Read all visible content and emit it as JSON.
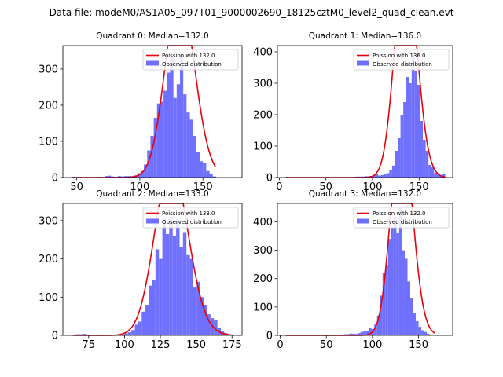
{
  "figure": {
    "suptitle": "Data file: modeM0/AS1A05_097T01_9000002690_18125cztM0_level2_quad_clean.evt",
    "colors": {
      "hist": "#7070ff",
      "line": "#e8000b",
      "axis": "#000000"
    }
  },
  "chart_data": [
    {
      "type": "bar",
      "title": "Quadrant 0: Median=132.0",
      "xlim": [
        39,
        181
      ],
      "ylim": [
        0,
        365
      ],
      "xticks": [
        50,
        100,
        150
      ],
      "yticks": [
        0,
        100,
        200,
        300
      ],
      "legend": {
        "placement": "top-right",
        "line_label": "Poission with 132.0",
        "hist_label": "Observed distribution"
      },
      "bins": {
        "x0": 46,
        "width": 2.6
      },
      "hist_values": [
        2,
        1,
        0,
        0,
        1,
        0,
        0,
        1,
        2,
        0,
        4,
        5,
        3,
        2,
        4,
        3,
        4,
        4,
        4,
        6,
        12,
        18,
        36,
        75,
        115,
        165,
        205,
        210,
        240,
        290,
        335,
        220,
        258,
        340,
        230,
        180,
        160,
        115,
        70,
        45,
        40,
        18,
        10,
        3
      ],
      "poisson": {
        "mu": 132.0,
        "total": 5700
      }
    },
    {
      "type": "bar",
      "title": "Quadrant 1: Median=136.0",
      "xlim": [
        -2,
        186
      ],
      "ylim": [
        0,
        420
      ],
      "xticks": [
        0,
        50,
        100,
        150
      ],
      "yticks": [
        0,
        100,
        200,
        300,
        400
      ],
      "legend": {
        "placement": "top-right",
        "line_label": "Poission with 136.0",
        "hist_label": "Observed distribution"
      },
      "bins": {
        "x0": 7,
        "width": 3.0
      },
      "hist_values": [
        2,
        1,
        0,
        0,
        1,
        0,
        0,
        0,
        1,
        0,
        0,
        0,
        0,
        0,
        0,
        1,
        0,
        0,
        0,
        0,
        0,
        1,
        1,
        1,
        2,
        3,
        3,
        3,
        4,
        4,
        5,
        8,
        10,
        6,
        8,
        10,
        14,
        23,
        38,
        85,
        125,
        200,
        240,
        320,
        300,
        390,
        340,
        295,
        180,
        120,
        85,
        40,
        35,
        15,
        13,
        8,
        10
      ],
      "poisson": {
        "mu": 136.0,
        "total": 6900
      }
    },
    {
      "type": "bar",
      "title": "Quadrant 2: Median=133.0",
      "xlim": [
        57,
        182
      ],
      "ylim": [
        0,
        345
      ],
      "xticks": [
        75,
        100,
        125,
        150,
        175
      ],
      "yticks": [
        0,
        100,
        200,
        300
      ],
      "legend": {
        "placement": "top-right",
        "line_label": "Poission with 133.0",
        "hist_label": "Observed distribution"
      },
      "bins": {
        "x0": 64,
        "width": 2.4
      },
      "hist_values": [
        2,
        3,
        3,
        4,
        2,
        1,
        0,
        1,
        1,
        2,
        2,
        2,
        2,
        2,
        3,
        5,
        8,
        14,
        28,
        36,
        62,
        80,
        130,
        145,
        225,
        200,
        305,
        265,
        310,
        260,
        305,
        230,
        268,
        210,
        200,
        125,
        140,
        100,
        80,
        55,
        45,
        40,
        20,
        10,
        6,
        3
      ],
      "poisson": {
        "mu": 133.0,
        "total": 5400
      }
    },
    {
      "type": "bar",
      "title": "Quadrant 3: Median=132.0",
      "xlim": [
        -3,
        187
      ],
      "ylim": [
        0,
        465
      ],
      "xticks": [
        0,
        50,
        100,
        150
      ],
      "yticks": [
        0,
        100,
        200,
        300,
        400
      ],
      "legend": {
        "placement": "top-right",
        "line_label": "Poission with 132.0",
        "hist_label": "Observed distribution"
      },
      "bins": {
        "x0": 6,
        "width": 3.0
      },
      "hist_values": [
        3,
        1,
        0,
        0,
        0,
        0,
        0,
        1,
        0,
        0,
        0,
        1,
        1,
        0,
        1,
        1,
        2,
        2,
        2,
        3,
        3,
        4,
        4,
        6,
        6,
        5,
        8,
        12,
        15,
        14,
        25,
        22,
        40,
        70,
        140,
        220,
        245,
        340,
        380,
        420,
        360,
        450,
        300,
        270,
        190,
        130,
        80,
        50,
        30,
        18,
        12,
        6,
        3,
        1
      ],
      "poisson": {
        "mu": 132.0,
        "total": 7200
      }
    }
  ]
}
